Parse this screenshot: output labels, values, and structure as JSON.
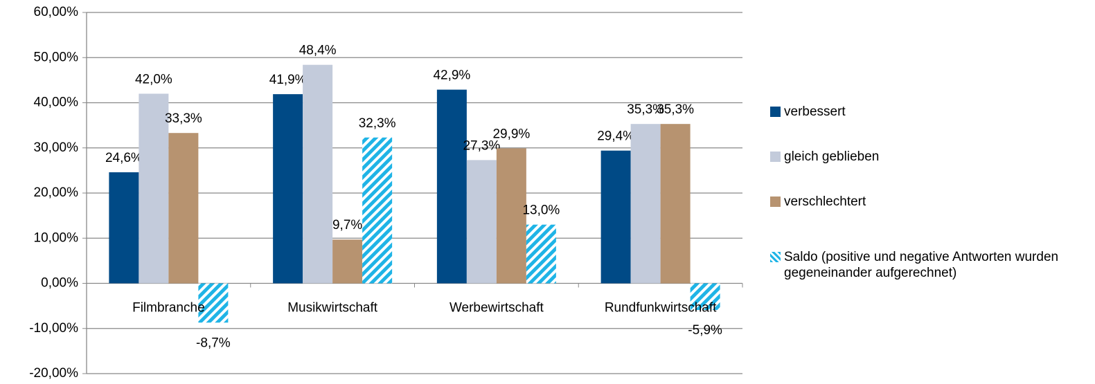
{
  "chart_data": {
    "type": "bar",
    "categories": [
      "Filmbranche",
      "Musikwirtschaft",
      "Werbewirtschaft",
      "Rundfunkwirtschaft"
    ],
    "series": [
      {
        "name": "verbessert",
        "color": "#004a86",
        "values": [
          24.6,
          41.9,
          42.9,
          29.4
        ],
        "value_labels": [
          "24,6%",
          "41,9%",
          "42,9%",
          "29,4%"
        ]
      },
      {
        "name": "gleich geblieben",
        "color": "#c3cbdb",
        "values": [
          42.0,
          48.4,
          27.3,
          35.3
        ],
        "value_labels": [
          "42,0%",
          "48,4%",
          "27,3%",
          "35,3%"
        ]
      },
      {
        "name": "verschlechtert",
        "color": "#b79370",
        "values": [
          33.3,
          9.7,
          29.9,
          35.3
        ],
        "value_labels": [
          "33,3%",
          "9,7%",
          "29,9%",
          "35,3%"
        ]
      },
      {
        "name": "Saldo (positive und negative Antworten wurden gegeneinander aufgerechnet)",
        "color": "#1fb4e6",
        "pattern": "diagonal",
        "values": [
          -8.7,
          32.3,
          13.0,
          -5.9
        ],
        "value_labels": [
          "-8,7%",
          "32,3%",
          "13,0%",
          "-5,9%"
        ]
      }
    ],
    "ylim": [
      -20,
      60
    ],
    "yticks": [
      {
        "value": -20,
        "label": "-20,00%"
      },
      {
        "value": -10,
        "label": "-10,00%"
      },
      {
        "value": 0,
        "label": "0,00%"
      },
      {
        "value": 10,
        "label": "10,00%"
      },
      {
        "value": 20,
        "label": "20,00%"
      },
      {
        "value": 30,
        "label": "30,00%"
      },
      {
        "value": 40,
        "label": "40,00%"
      },
      {
        "value": 50,
        "label": "50,00%"
      },
      {
        "value": 60,
        "label": "60,00%"
      }
    ],
    "grid": true,
    "legend": "right"
  }
}
